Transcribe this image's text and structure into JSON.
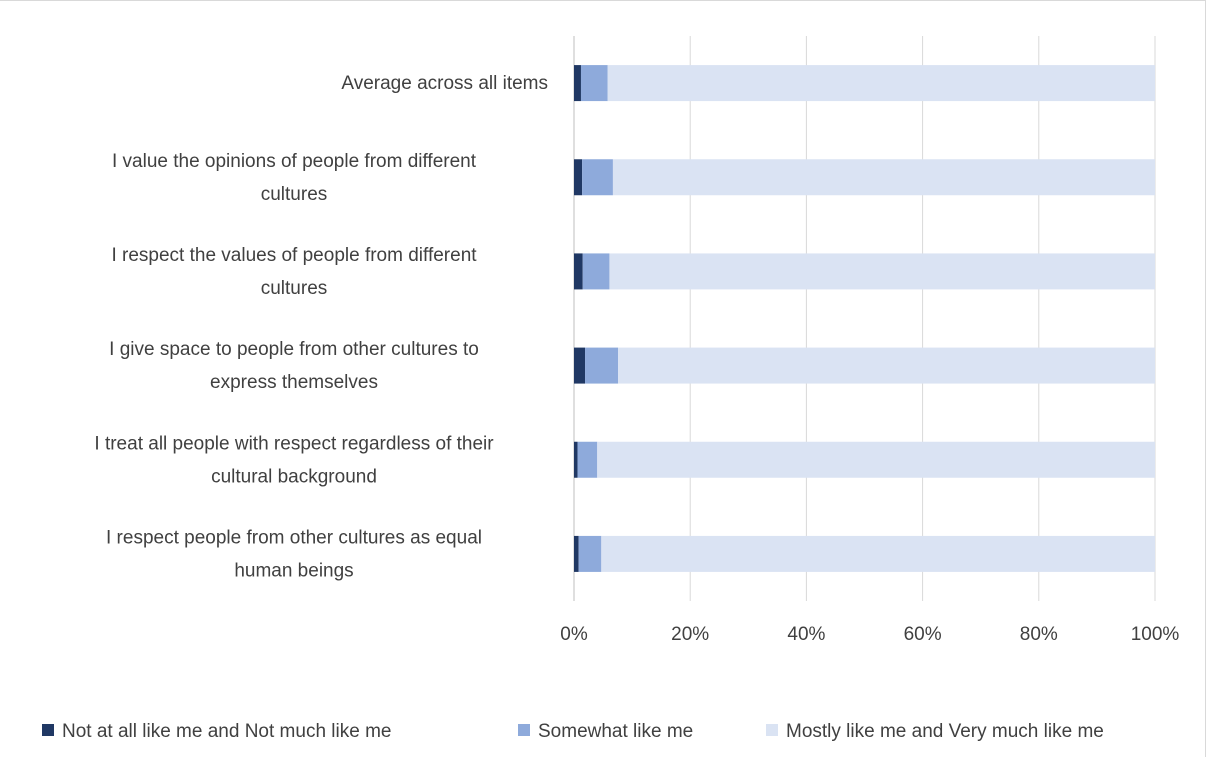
{
  "chart_data": {
    "type": "bar",
    "orientation": "horizontal",
    "stacked": "percent",
    "title": "",
    "xlabel": "",
    "ylabel": "",
    "xlim": [
      0,
      100
    ],
    "x_ticks": [
      "0%",
      "20%",
      "40%",
      "60%",
      "80%",
      "100%"
    ],
    "x_tick_values": [
      0,
      20,
      40,
      60,
      80,
      100
    ],
    "grid": "vertical",
    "legend": "bottom",
    "categories": [
      [
        "Average across all items"
      ],
      [
        "I value the opinions of people from different",
        "cultures"
      ],
      [
        "I respect the values of people from different",
        "cultures"
      ],
      [
        "I give space to people from other cultures to",
        "express themselves"
      ],
      [
        "I treat all people with respect regardless of their",
        "cultural background"
      ],
      [
        "I respect people from other cultures as equal",
        "human beings"
      ]
    ],
    "series": [
      {
        "name": "Not at all like me and Not much like me",
        "color": "#203864",
        "values": [
          1.2,
          1.4,
          1.5,
          1.9,
          0.6,
          0.8
        ]
      },
      {
        "name": "Somewhat like me",
        "color": "#8eaadb",
        "values": [
          4.6,
          5.3,
          4.6,
          5.7,
          3.4,
          3.9
        ]
      },
      {
        "name": "Mostly like me and Very much like me",
        "color": "#dae3f3",
        "values": [
          94.2,
          93.3,
          93.9,
          92.4,
          96.0,
          95.3
        ]
      }
    ]
  }
}
